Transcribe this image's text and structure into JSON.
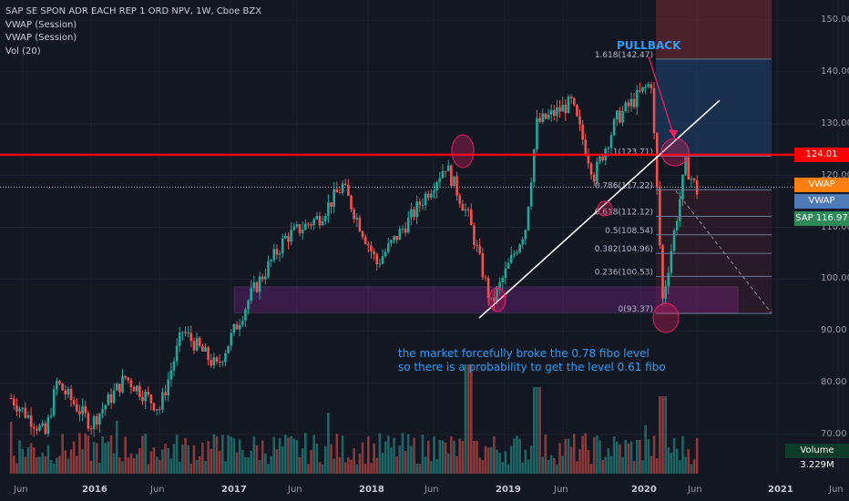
{
  "legend": {
    "title": "SAP SE SPON ADR EACH REP 1 ORD NPV, 1W, Cboe BZX",
    "line2": "VWAP (Session)",
    "line3": "VWAP (Session)",
    "line4": "Vol (20)"
  },
  "annotations": {
    "pullback": "PULLBACK",
    "note_line1": "the market forcefully broke the 0.78 fibo level",
    "note_line2": "so there is a probability to get the level 0.61 fibo"
  },
  "price_labels": {
    "resistance": "124.01",
    "vwap1": "VWAP  117.76",
    "vwap2": "VWAP  117.76",
    "sap": "SAP  116.97",
    "volume": "Volume  3.229M"
  },
  "colors": {
    "background": "#131722",
    "up": "#26a69a",
    "down": "#ef5350",
    "resistance": "#ff0000",
    "vwap1": "#ff7f0e",
    "vwap2": "#4f7ab8",
    "sap_label": "#2e8b57",
    "annotation": "#2f9df4",
    "zone": "#9c27b0"
  },
  "chart_data": {
    "type": "candlestick",
    "title": "SAP SE SPON ADR EACH REP 1 ORD NPV, 1W, Cboe BZX",
    "ylim": [
      62,
      154
    ],
    "y_ticks": [
      70,
      80,
      90,
      100,
      110,
      120,
      130,
      140,
      150
    ],
    "x_ticks": [
      "Jun",
      "2016",
      "Jun",
      "2017",
      "Jun",
      "2018",
      "Jun",
      "2019",
      "Jun",
      "2020",
      "Jun",
      "2021",
      "Jun"
    ],
    "price_path": [
      [
        "2015-06",
        77
      ],
      [
        "2015-09",
        70
      ],
      [
        "2015-10",
        80
      ],
      [
        "2016-01",
        72
      ],
      [
        "2016-04",
        81
      ],
      [
        "2016-07",
        75
      ],
      [
        "2016-09",
        90
      ],
      [
        "2016-12",
        83
      ],
      [
        "2017-03",
        97
      ],
      [
        "2017-06",
        108
      ],
      [
        "2017-09",
        112
      ],
      [
        "2017-11",
        118
      ],
      [
        "2018-02",
        103
      ],
      [
        "2018-05",
        112
      ],
      [
        "2018-08",
        122
      ],
      [
        "2018-10",
        112
      ],
      [
        "2018-12",
        95
      ],
      [
        "2019-03",
        110
      ],
      [
        "2019-04",
        130
      ],
      [
        "2019-07",
        134
      ],
      [
        "2019-09",
        120
      ],
      [
        "2019-11",
        131
      ],
      [
        "2020-02",
        138
      ],
      [
        "2020-03",
        96
      ],
      [
        "2020-05",
        122
      ],
      [
        "2020-06",
        117
      ]
    ],
    "horizontal_levels": {
      "resistance": 124.01,
      "vwap": 117.76,
      "last": 116.97
    },
    "fibonacci": [
      {
        "label": "1.618(142.47)",
        "value": 142.47
      },
      {
        "label": "1(123.71)",
        "value": 123.71
      },
      {
        "label": "0.786(117.22)",
        "value": 117.22
      },
      {
        "label": "0.618(112.12)",
        "value": 112.12
      },
      {
        "label": "0.5(108.54)",
        "value": 108.54
      },
      {
        "label": "0.382(104.96)",
        "value": 104.96
      },
      {
        "label": "0.236(100.53)",
        "value": 100.53
      },
      {
        "label": "0(93.37)",
        "value": 93.37
      }
    ],
    "support_zone": [
      93.5,
      98.5
    ],
    "volume_label": "Volume",
    "volume_last": "3.229M"
  }
}
